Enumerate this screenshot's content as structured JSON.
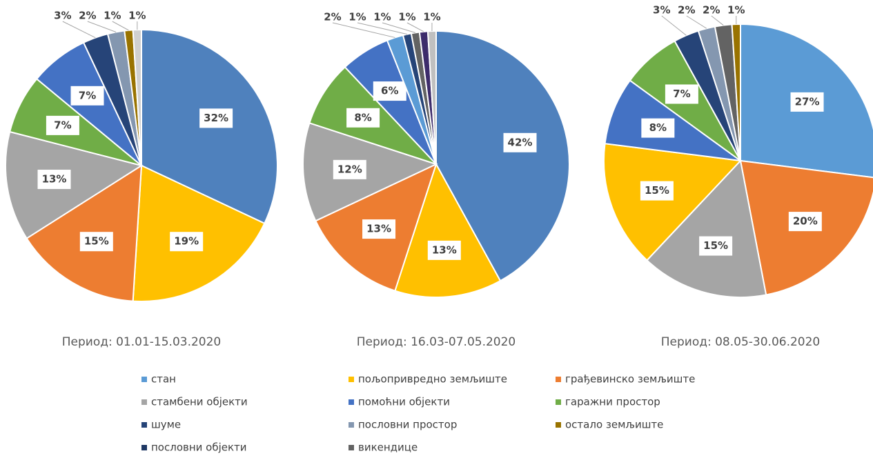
{
  "chart_data": [
    {
      "type": "pie",
      "caption": "Период: 01.01-15.03.2020",
      "values": [
        32,
        19,
        15,
        13,
        7,
        7,
        3,
        2,
        1,
        1
      ],
      "value_labels": [
        "32%",
        "19%",
        "15%",
        "13%",
        "7%",
        "7%",
        "3%",
        "2%",
        "1%",
        "1%"
      ],
      "colors": [
        "#4f81bd",
        "#ffc000",
        "#ed7d31",
        "#a5a5a5",
        "#70ad47",
        "#4472c4",
        "#264478",
        "#8497b0",
        "#997300",
        "#d0d0d0"
      ]
    },
    {
      "type": "pie",
      "caption": "Период: 16.03-07.05.2020",
      "values": [
        42,
        13,
        13,
        12,
        8,
        6,
        2,
        1,
        1,
        1,
        1
      ],
      "value_labels": [
        "42%",
        "13%",
        "13%",
        "12%",
        "8%",
        "6%",
        "2%",
        "1%",
        "1%",
        "1%",
        "1%"
      ],
      "colors": [
        "#4f81bd",
        "#ffc000",
        "#ed7d31",
        "#a5a5a5",
        "#70ad47",
        "#4472c4",
        "#5b9bd5",
        "#264478",
        "#636363",
        "#3d2c6b",
        "#c0c0c0"
      ]
    },
    {
      "type": "pie",
      "caption": "Период: 08.05-30.06.2020",
      "values": [
        27,
        20,
        15,
        15,
        8,
        7,
        3,
        2,
        2,
        1
      ],
      "value_labels": [
        "27%",
        "20%",
        "15%",
        "15%",
        "8%",
        "7%",
        "3%",
        "2%",
        "2%",
        "1%"
      ],
      "colors": [
        "#5b9bd5",
        "#ed7d31",
        "#a5a5a5",
        "#ffc000",
        "#4472c4",
        "#70ad47",
        "#264478",
        "#8497b0",
        "#636363",
        "#997300"
      ]
    }
  ],
  "legend": {
    "names": [
      "стан",
      "пољопривредно земљиште",
      "грађевинско земљиште",
      "стамбени објекти",
      "помоћни објекти",
      "гаражни простор",
      "шуме",
      "пословни простор",
      "остало земљиште",
      "пословни објекти",
      "викендице"
    ],
    "colors": [
      "#5b9bd5",
      "#ffc000",
      "#ed7d31",
      "#a5a5a5",
      "#4472c4",
      "#70ad47",
      "#264478",
      "#8497b0",
      "#997300",
      "#1f3864",
      "#636363"
    ]
  }
}
